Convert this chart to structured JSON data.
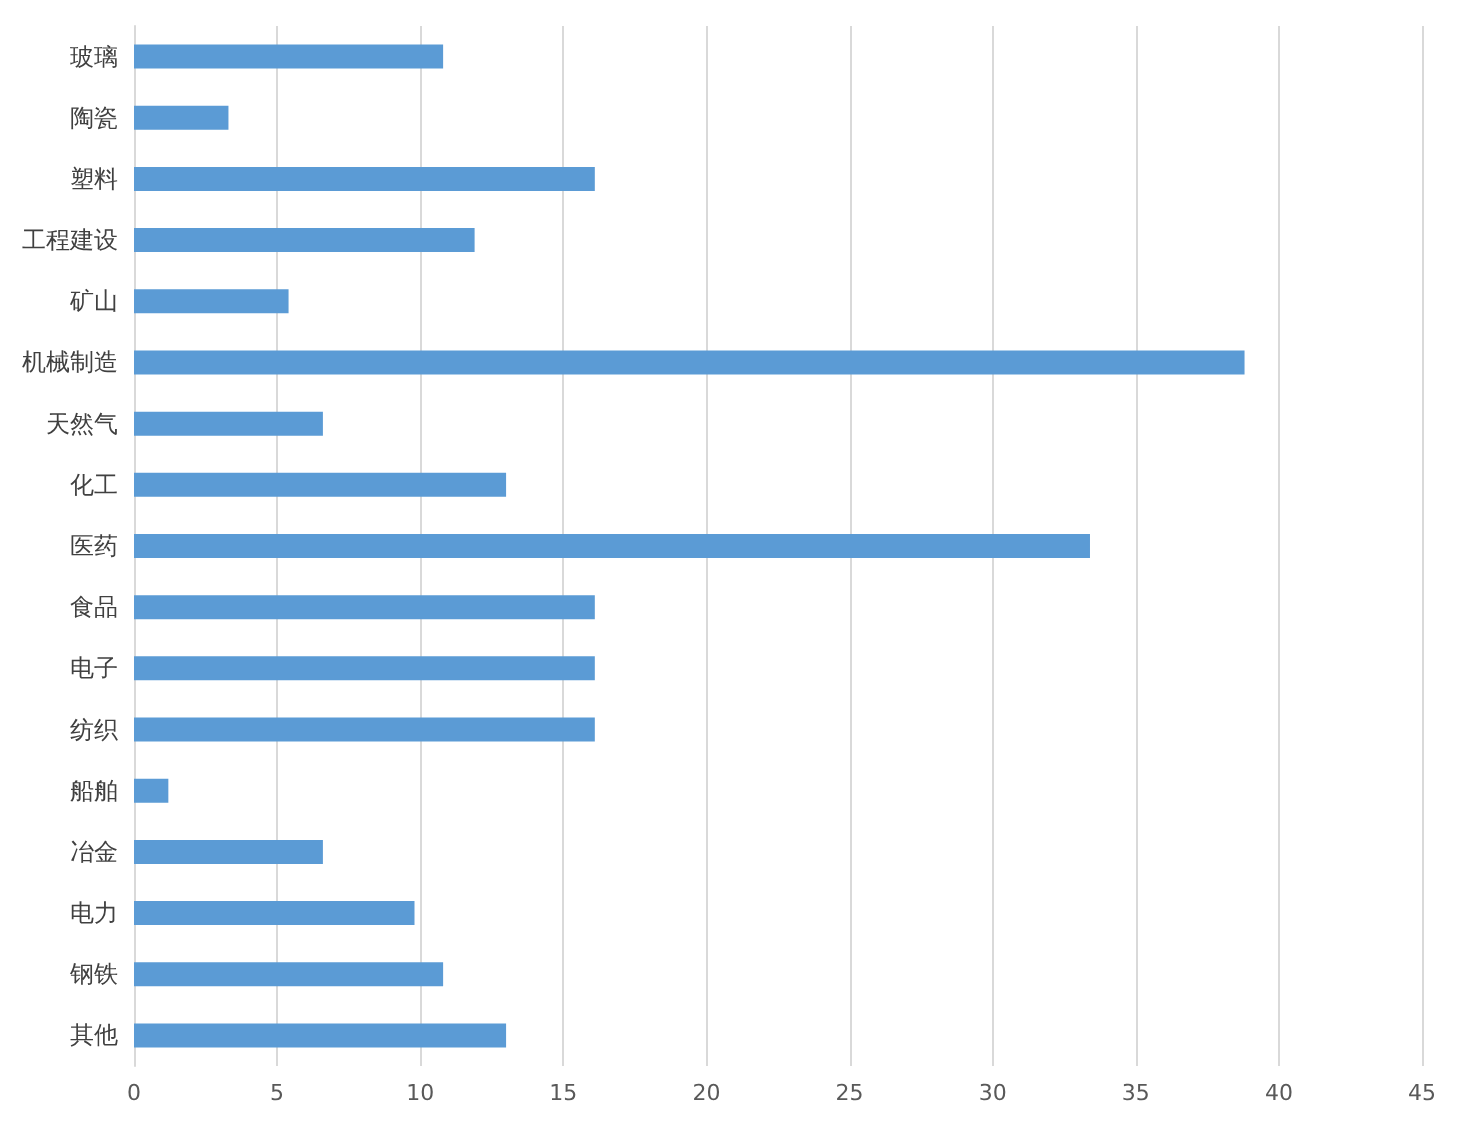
{
  "chart_data": {
    "type": "bar",
    "orientation": "horizontal",
    "categories": [
      "玻璃",
      "陶瓷",
      "塑料",
      "工程建设",
      "矿山",
      "机械制造",
      "天然气",
      "化工",
      "医药",
      "食品",
      "电子",
      "纺织",
      "船舶",
      "冶金",
      "电力",
      "钢铁",
      "其他"
    ],
    "values": [
      10.8,
      3.3,
      16.1,
      11.9,
      5.4,
      38.8,
      6.6,
      13,
      33.4,
      16.1,
      16.1,
      16.1,
      1.2,
      6.6,
      9.8,
      10.8,
      13
    ],
    "color": "#5b9bd5",
    "xlim": [
      0,
      45
    ],
    "xticks": [
      0,
      5,
      10,
      15,
      20,
      25,
      30,
      35,
      40,
      45
    ],
    "grid": "x"
  }
}
